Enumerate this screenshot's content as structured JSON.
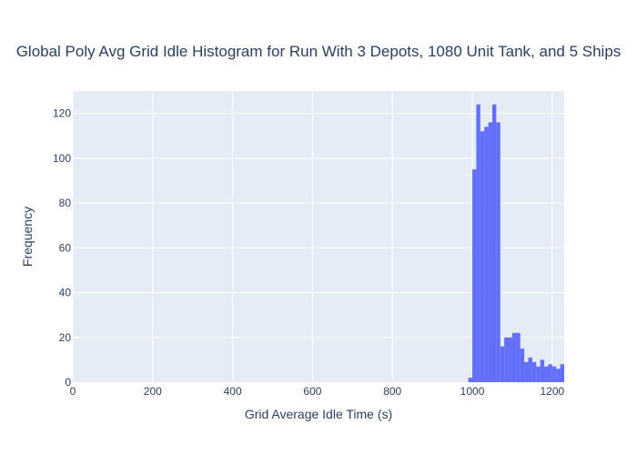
{
  "chart_data": {
    "type": "bar",
    "title": "Global Poly Avg Grid Idle Histogram for Run With 3 Depots, 1080 Unit Tank, and 5 Ships",
    "xlabel": "Grid Average Idle Time (s)",
    "ylabel": "Frequency",
    "xlim": [
      0,
      1230
    ],
    "ylim": [
      0,
      130
    ],
    "x_ticks": [
      0,
      200,
      400,
      600,
      800,
      1000,
      1200
    ],
    "y_ticks": [
      0,
      20,
      40,
      60,
      80,
      100,
      120
    ],
    "grid": true,
    "bin_width": 10,
    "bins": [
      {
        "start": 990,
        "count": 2
      },
      {
        "start": 1000,
        "count": 95
      },
      {
        "start": 1010,
        "count": 124
      },
      {
        "start": 1020,
        "count": 112
      },
      {
        "start": 1030,
        "count": 114
      },
      {
        "start": 1040,
        "count": 116
      },
      {
        "start": 1050,
        "count": 124
      },
      {
        "start": 1060,
        "count": 116
      },
      {
        "start": 1070,
        "count": 16
      },
      {
        "start": 1080,
        "count": 20
      },
      {
        "start": 1090,
        "count": 20
      },
      {
        "start": 1100,
        "count": 22
      },
      {
        "start": 1110,
        "count": 22
      },
      {
        "start": 1120,
        "count": 15
      },
      {
        "start": 1130,
        "count": 9
      },
      {
        "start": 1140,
        "count": 11
      },
      {
        "start": 1150,
        "count": 9
      },
      {
        "start": 1160,
        "count": 7
      },
      {
        "start": 1170,
        "count": 10
      },
      {
        "start": 1180,
        "count": 7
      },
      {
        "start": 1190,
        "count": 8
      },
      {
        "start": 1200,
        "count": 7
      },
      {
        "start": 1210,
        "count": 6
      },
      {
        "start": 1220,
        "count": 8
      }
    ],
    "colors": {
      "bar": "#636efa",
      "plot_bg": "#e5ecf6",
      "grid": "#ffffff",
      "text": "#2a3f5f"
    }
  }
}
